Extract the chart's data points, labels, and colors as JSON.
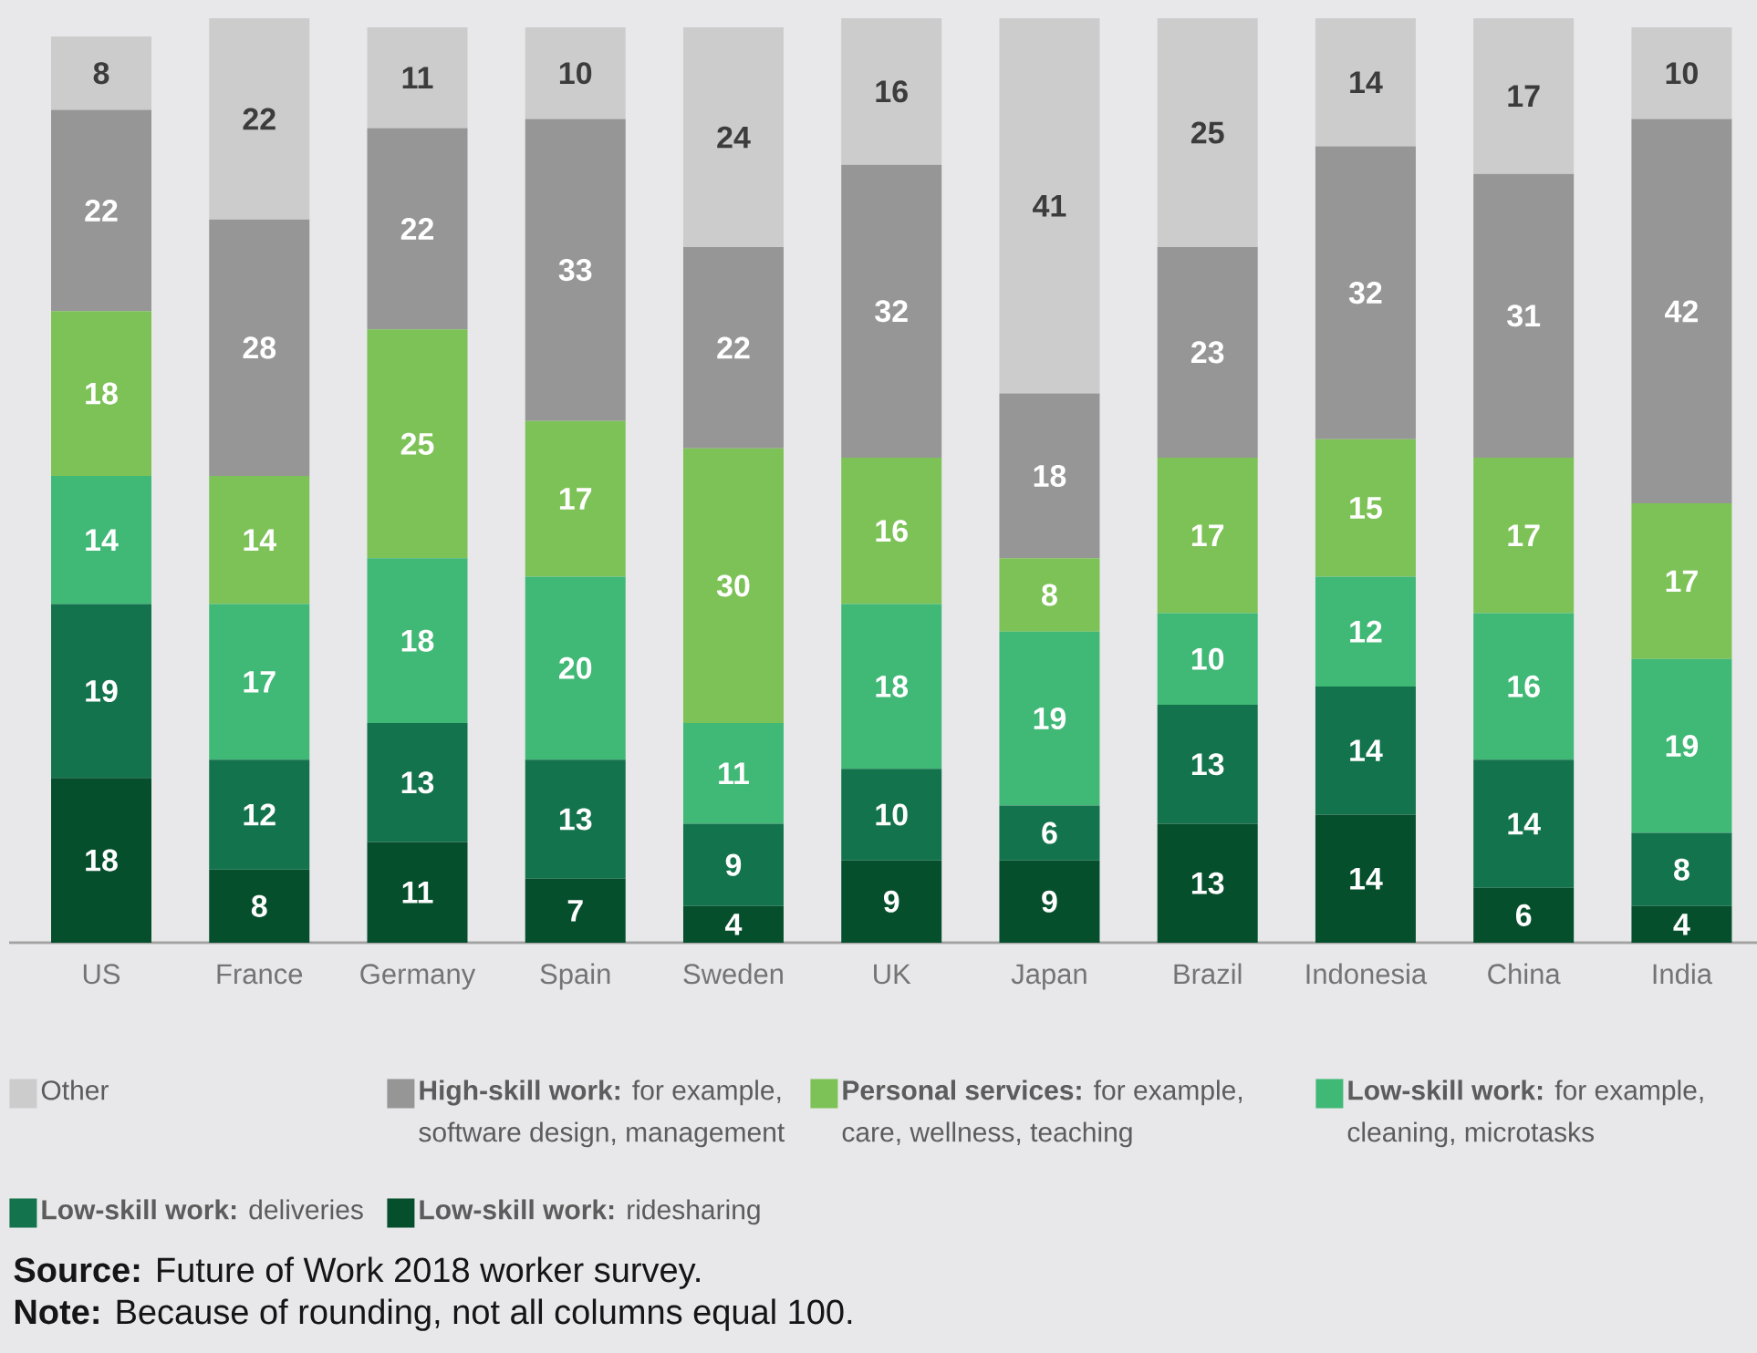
{
  "chart_data": {
    "type": "bar",
    "stacked": true,
    "data_labels": true,
    "legend": "bottom",
    "categories": [
      "US",
      "France",
      "Germany",
      "Spain",
      "Sweden",
      "UK",
      "Japan",
      "Brazil",
      "Indonesia",
      "China",
      "India"
    ],
    "series": [
      {
        "name": "**Low-skill work:** ridesharing",
        "color": "#064f2c",
        "values": [
          18,
          8,
          11,
          7,
          4,
          9,
          9,
          13,
          14,
          6,
          4
        ]
      },
      {
        "name": "**Low-skill work:** deliveries",
        "color": "#13734c",
        "values": [
          19,
          12,
          13,
          13,
          9,
          10,
          6,
          13,
          14,
          14,
          8
        ]
      },
      {
        "name": "**Low-skill work:** for example, cleaning, microtasks",
        "color": "#40b876",
        "values": [
          14,
          17,
          18,
          20,
          11,
          18,
          19,
          10,
          12,
          16,
          19
        ]
      },
      {
        "name": "**Personal services:** for example, care, wellness, teaching",
        "color": "#7dc257",
        "values": [
          18,
          14,
          25,
          17,
          30,
          16,
          8,
          17,
          15,
          17,
          17
        ]
      },
      {
        "name": "**High-skill work:** for example, software design, management",
        "color": "#969696",
        "values": [
          22,
          28,
          22,
          33,
          22,
          32,
          18,
          23,
          32,
          31,
          42
        ]
      },
      {
        "name": "Other",
        "color": "#cccccc",
        "values": [
          8,
          22,
          11,
          10,
          24,
          16,
          41,
          25,
          14,
          17,
          10
        ]
      }
    ],
    "annotations": [
      "**Source:** Future of Work 2018 worker survey.",
      "**Note:** Because of rounding, not all columns equal 100."
    ]
  }
}
